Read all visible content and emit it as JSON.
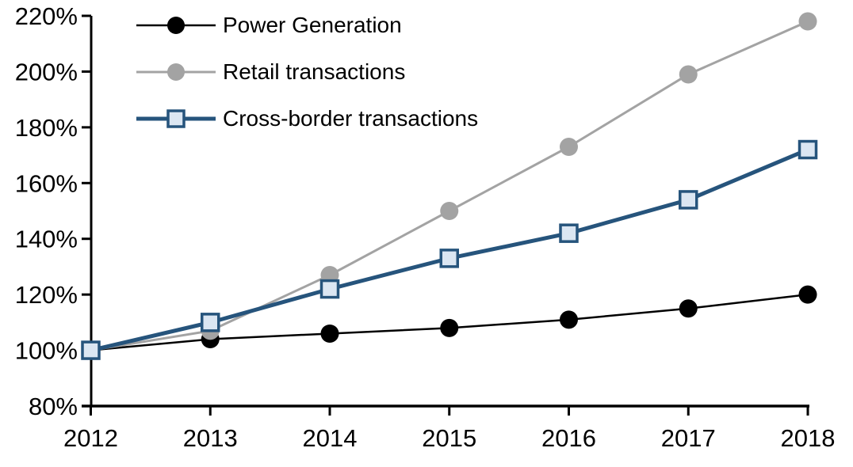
{
  "chart_data": {
    "type": "line",
    "x_labels": [
      "2012",
      "2013",
      "2014",
      "2015",
      "2016",
      "2017",
      "2018"
    ],
    "y_axis": {
      "min": 80,
      "max": 220,
      "step": 20,
      "tick_labels": [
        "220%",
        "200%",
        "180%",
        "160%",
        "140%",
        "120%",
        "100%",
        "80%"
      ],
      "unit": "%"
    },
    "series": [
      {
        "name": "Power Generation",
        "color": "#000000",
        "marker": "circle",
        "marker_fill": "#000000",
        "line_width": 2.5,
        "values": [
          100,
          104,
          106,
          108,
          111,
          115,
          120
        ]
      },
      {
        "name": "Retail transactions",
        "color": "#A3A3A3",
        "marker": "circle",
        "marker_fill": "#A3A3A3",
        "line_width": 3,
        "values": [
          100,
          107,
          127,
          150,
          173,
          199,
          218
        ]
      },
      {
        "name": "Cross-border transactions",
        "color": "#26547C",
        "marker": "square",
        "marker_fill": "#DBE6F2",
        "line_width": 5,
        "values": [
          100,
          110,
          122,
          133,
          142,
          154,
          172
        ]
      }
    ],
    "legend_position": "top-left",
    "grid": false,
    "axis_color": "#000000"
  }
}
